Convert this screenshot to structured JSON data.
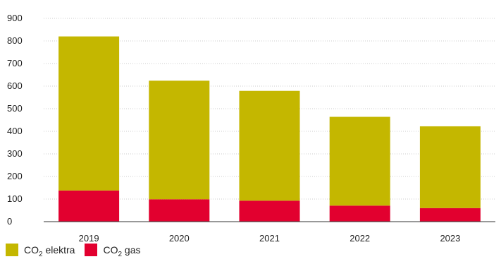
{
  "chart_data": {
    "type": "bar",
    "stacked": true,
    "categories": [
      "2019",
      "2020",
      "2021",
      "2022",
      "2023"
    ],
    "series": [
      {
        "name_main": "CO",
        "name_sub": "2",
        "name_rest": " gas",
        "color": "#e2002f",
        "values": [
          138,
          99,
          93,
          71,
          60
        ]
      },
      {
        "name_main": "CO",
        "name_sub": "2",
        "name_rest": " elektra",
        "color": "#c4b700",
        "values": [
          682,
          525,
          486,
          393,
          362
        ]
      }
    ],
    "y_ticks": [
      "0",
      "100",
      "200",
      "300",
      "400",
      "500",
      "600",
      "700",
      "800",
      "900"
    ],
    "ylim": [
      0,
      900
    ],
    "grid": true,
    "legend_position": "bottom-left"
  }
}
